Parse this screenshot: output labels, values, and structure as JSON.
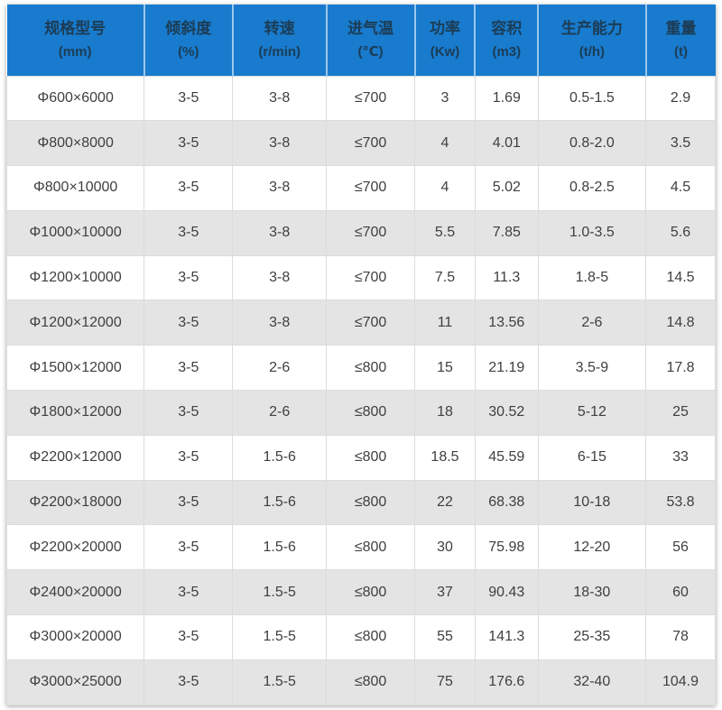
{
  "chart_data": {
    "type": "table",
    "columns": [
      {
        "label": "规格型号",
        "unit": "(mm)"
      },
      {
        "label": "倾斜度",
        "unit": "(%)"
      },
      {
        "label": "转速",
        "unit": "(r/min)"
      },
      {
        "label": "进气温",
        "unit": "(℃)"
      },
      {
        "label": "功率",
        "unit": "(Kw)"
      },
      {
        "label": "容积",
        "unit": "(m3)"
      },
      {
        "label": "生产能力",
        "unit": "(t/h)"
      },
      {
        "label": "重量",
        "unit": "(t)"
      }
    ],
    "rows": [
      [
        "Φ600×6000",
        "3-5",
        "3-8",
        "≤700",
        "3",
        "1.69",
        "0.5-1.5",
        "2.9"
      ],
      [
        "Φ800×8000",
        "3-5",
        "3-8",
        "≤700",
        "4",
        "4.01",
        "0.8-2.0",
        "3.5"
      ],
      [
        "Φ800×10000",
        "3-5",
        "3-8",
        "≤700",
        "4",
        "5.02",
        "0.8-2.5",
        "4.5"
      ],
      [
        "Φ1000×10000",
        "3-5",
        "3-8",
        "≤700",
        "5.5",
        "7.85",
        "1.0-3.5",
        "5.6"
      ],
      [
        "Φ1200×10000",
        "3-5",
        "3-8",
        "≤700",
        "7.5",
        "11.3",
        "1.8-5",
        "14.5"
      ],
      [
        "Φ1200×12000",
        "3-5",
        "3-8",
        "≤700",
        "11",
        "13.56",
        "2-6",
        "14.8"
      ],
      [
        "Φ1500×12000",
        "3-5",
        "2-6",
        "≤800",
        "15",
        "21.19",
        "3.5-9",
        "17.8"
      ],
      [
        "Φ1800×12000",
        "3-5",
        "2-6",
        "≤800",
        "18",
        "30.52",
        "5-12",
        "25"
      ],
      [
        "Φ2200×12000",
        "3-5",
        "1.5-6",
        "≤800",
        "18.5",
        "45.59",
        "6-15",
        "33"
      ],
      [
        "Φ2200×18000",
        "3-5",
        "1.5-6",
        "≤800",
        "22",
        "68.38",
        "10-18",
        "53.8"
      ],
      [
        "Φ2200×20000",
        "3-5",
        "1.5-6",
        "≤800",
        "30",
        "75.98",
        "12-20",
        "56"
      ],
      [
        "Φ2400×20000",
        "3-5",
        "1.5-5",
        "≤800",
        "37",
        "90.43",
        "18-30",
        "60"
      ],
      [
        "Φ3000×20000",
        "3-5",
        "1.5-5",
        "≤800",
        "55",
        "141.3",
        "25-35",
        "78"
      ],
      [
        "Φ3000×25000",
        "3-5",
        "1.5-5",
        "≤800",
        "75",
        "176.6",
        "32-40",
        "104.9"
      ]
    ]
  },
  "colors": {
    "header_bg": "#187BCD",
    "header_text": "#1C3C55",
    "header_divider": "#9CC7EA",
    "body_text": "#3F3F3F",
    "row_bg": "#FFFFFF",
    "row_alt_bg": "#E4E4E4",
    "border": "#DCDCDC"
  }
}
